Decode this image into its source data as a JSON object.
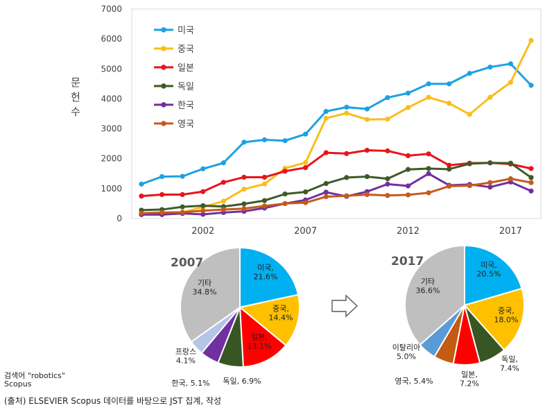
{
  "chart_data": [
    {
      "type": "line",
      "title": "",
      "xlabel": "",
      "ylabel": "문헌수",
      "ylim": [
        0,
        7000
      ],
      "yticks": [
        0,
        1000,
        2000,
        3000,
        4000,
        5000,
        6000,
        7000
      ],
      "xticks": [
        2002,
        2007,
        2012,
        2017
      ],
      "x": [
        1999,
        2000,
        2001,
        2002,
        2003,
        2004,
        2005,
        2006,
        2007,
        2008,
        2009,
        2010,
        2011,
        2012,
        2013,
        2014,
        2015,
        2016,
        2017,
        2018
      ],
      "grid": false,
      "legend": "top-left",
      "series": [
        {
          "name": "미국",
          "color": "#1ba1e2",
          "values": [
            1150,
            1400,
            1410,
            1660,
            1860,
            2550,
            2630,
            2600,
            2820,
            3580,
            3720,
            3660,
            4040,
            4190,
            4500,
            4500,
            4850,
            5060,
            5170,
            4450
          ]
        },
        {
          "name": "중국",
          "color": "#f9be1c",
          "values": [
            150,
            180,
            210,
            380,
            580,
            980,
            1150,
            1680,
            1870,
            3350,
            3520,
            3310,
            3320,
            3710,
            4050,
            3850,
            3480,
            4050,
            4550,
            5950
          ]
        },
        {
          "name": "일본",
          "color": "#e8141b",
          "values": [
            750,
            800,
            800,
            900,
            1210,
            1380,
            1380,
            1580,
            1700,
            2200,
            2170,
            2280,
            2260,
            2100,
            2160,
            1780,
            1850,
            1860,
            1820,
            1670
          ]
        },
        {
          "name": "독일",
          "color": "#3e5a28",
          "values": [
            280,
            300,
            390,
            430,
            400,
            490,
            600,
            820,
            890,
            1170,
            1370,
            1400,
            1330,
            1640,
            1670,
            1650,
            1830,
            1860,
            1850,
            1370
          ]
        },
        {
          "name": "한국",
          "color": "#7030a0",
          "values": [
            130,
            130,
            170,
            140,
            200,
            240,
            350,
            500,
            620,
            880,
            740,
            900,
            1150,
            1090,
            1500,
            1110,
            1140,
            1050,
            1220,
            920
          ]
        },
        {
          "name": "영국",
          "color": "#c55a1a",
          "values": [
            180,
            200,
            210,
            260,
            300,
            330,
            420,
            500,
            530,
            730,
            760,
            800,
            770,
            790,
            860,
            1080,
            1100,
            1200,
            1330,
            1200
          ]
        }
      ]
    },
    {
      "type": "pie",
      "title": "2007",
      "slices": [
        {
          "name": "미국",
          "value": 21.6,
          "label": "미국,\n21.6%",
          "color": "#00b0f0"
        },
        {
          "name": "중국",
          "value": 14.4,
          "label": "중국,\n14.4%",
          "color": "#ffc000"
        },
        {
          "name": "일본",
          "value": 13.1,
          "label": "일본,\n13.1%",
          "color": "#ff0000"
        },
        {
          "name": "독일",
          "value": 6.9,
          "label": "독일, 6.9%",
          "color": "#375623"
        },
        {
          "name": "한국",
          "value": 5.1,
          "label": "한국, 5.1%",
          "color": "#7030a0"
        },
        {
          "name": "프랑스",
          "value": 4.1,
          "label": "프랑스\n4.1%",
          "color": "#b4c6e7"
        },
        {
          "name": "기타",
          "value": 34.8,
          "label": "기타\n34.8%",
          "color": "#bfbfbf"
        }
      ]
    },
    {
      "type": "pie",
      "title": "2017",
      "slices": [
        {
          "name": "미국",
          "value": 20.5,
          "label": "미국,\n20.5%",
          "color": "#00b0f0"
        },
        {
          "name": "중국",
          "value": 18.0,
          "label": "중국,\n18.0%",
          "color": "#ffc000"
        },
        {
          "name": "독일",
          "value": 7.4,
          "label": "독일,\n7.4%",
          "color": "#375623"
        },
        {
          "name": "일본",
          "value": 7.2,
          "label": "일본,\n7.2%",
          "color": "#ff0000"
        },
        {
          "name": "영국",
          "value": 5.4,
          "label": "영국, 5.4%",
          "color": "#c55a11"
        },
        {
          "name": "이탈리아",
          "value": 5.0,
          "label": "이탈리아\n5.0%",
          "color": "#5b9bd5"
        },
        {
          "name": "기타",
          "value": 36.6,
          "label": "기타\n36.6%",
          "color": "#bfbfbf"
        }
      ]
    }
  ],
  "footnote": {
    "search_label": "검색어 \"robotics\"",
    "source_db": "Scopus",
    "source_line": "(출처)  ELSEVIER Scopus 데이터를 바탕으로 JST 집계, 작성"
  }
}
